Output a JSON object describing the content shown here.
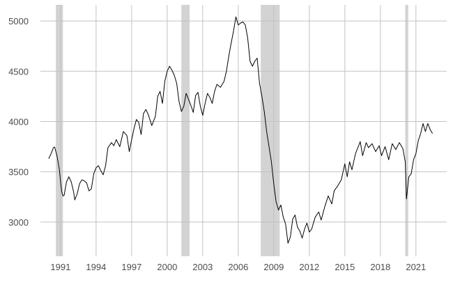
{
  "chart_data": {
    "type": "line",
    "title": "",
    "xlabel": "",
    "ylabel": "",
    "xlim": [
      1989.3,
      2023.6
    ],
    "ylim": [
      2660,
      5160
    ],
    "grid": true,
    "x_ticks": [
      {
        "value": 1991,
        "label": "1991"
      },
      {
        "value": 1994,
        "label": "1994"
      },
      {
        "value": 1997,
        "label": "1997"
      },
      {
        "value": 2000,
        "label": "2000"
      },
      {
        "value": 2003,
        "label": "2003"
      },
      {
        "value": 2006,
        "label": "2006"
      },
      {
        "value": 2009,
        "label": "2009"
      },
      {
        "value": 2012,
        "label": "2012"
      },
      {
        "value": 2015,
        "label": "2015"
      },
      {
        "value": 2018,
        "label": "2018"
      },
      {
        "value": 2021,
        "label": "2021"
      }
    ],
    "y_ticks": [
      {
        "value": 3000,
        "label": "3000"
      },
      {
        "value": 3500,
        "label": "3500"
      },
      {
        "value": 4000,
        "label": "4000"
      },
      {
        "value": 4500,
        "label": "4500"
      },
      {
        "value": 5000,
        "label": "5000"
      }
    ],
    "shaded_periods": [
      {
        "start": 1990.6,
        "end": 1991.2
      },
      {
        "start": 2001.2,
        "end": 2001.9
      },
      {
        "start": 2007.9,
        "end": 2009.5
      },
      {
        "start": 2020.1,
        "end": 2020.35
      }
    ],
    "shade_color": "#d3d3d3",
    "line_color": "#000000",
    "series": [
      {
        "values": [
          [
            1990.0,
            3630
          ],
          [
            1990.2,
            3680
          ],
          [
            1990.4,
            3740
          ],
          [
            1990.5,
            3745
          ],
          [
            1990.7,
            3660
          ],
          [
            1990.9,
            3520
          ],
          [
            1991.0,
            3400
          ],
          [
            1991.1,
            3300
          ],
          [
            1991.2,
            3260
          ],
          [
            1991.3,
            3265
          ],
          [
            1991.5,
            3400
          ],
          [
            1991.7,
            3450
          ],
          [
            1991.9,
            3400
          ],
          [
            1992.1,
            3300
          ],
          [
            1992.2,
            3220
          ],
          [
            1992.4,
            3280
          ],
          [
            1992.6,
            3380
          ],
          [
            1992.8,
            3420
          ],
          [
            1993.0,
            3410
          ],
          [
            1993.2,
            3390
          ],
          [
            1993.4,
            3310
          ],
          [
            1993.6,
            3330
          ],
          [
            1993.8,
            3480
          ],
          [
            1994.0,
            3540
          ],
          [
            1994.2,
            3560
          ],
          [
            1994.4,
            3510
          ],
          [
            1994.6,
            3470
          ],
          [
            1994.8,
            3560
          ],
          [
            1995.0,
            3740
          ],
          [
            1995.3,
            3790
          ],
          [
            1995.5,
            3760
          ],
          [
            1995.7,
            3820
          ],
          [
            1996.0,
            3750
          ],
          [
            1996.3,
            3900
          ],
          [
            1996.6,
            3860
          ],
          [
            1996.8,
            3700
          ],
          [
            1997.0,
            3820
          ],
          [
            1997.2,
            3930
          ],
          [
            1997.4,
            4020
          ],
          [
            1997.6,
            3990
          ],
          [
            1997.8,
            3870
          ],
          [
            1998.0,
            4080
          ],
          [
            1998.2,
            4120
          ],
          [
            1998.4,
            4070
          ],
          [
            1998.7,
            3960
          ],
          [
            1999.0,
            4050
          ],
          [
            1999.2,
            4250
          ],
          [
            1999.4,
            4300
          ],
          [
            1999.6,
            4180
          ],
          [
            1999.8,
            4400
          ],
          [
            2000.0,
            4500
          ],
          [
            2000.2,
            4550
          ],
          [
            2000.4,
            4510
          ],
          [
            2000.6,
            4460
          ],
          [
            2000.8,
            4380
          ],
          [
            2001.0,
            4200
          ],
          [
            2001.2,
            4100
          ],
          [
            2001.4,
            4150
          ],
          [
            2001.6,
            4280
          ],
          [
            2001.8,
            4220
          ],
          [
            2002.0,
            4160
          ],
          [
            2002.2,
            4090
          ],
          [
            2002.4,
            4260
          ],
          [
            2002.6,
            4290
          ],
          [
            2002.8,
            4150
          ],
          [
            2003.0,
            4060
          ],
          [
            2003.2,
            4180
          ],
          [
            2003.4,
            4280
          ],
          [
            2003.6,
            4240
          ],
          [
            2003.8,
            4180
          ],
          [
            2004.0,
            4300
          ],
          [
            2004.2,
            4370
          ],
          [
            2004.5,
            4340
          ],
          [
            2004.8,
            4400
          ],
          [
            2005.0,
            4500
          ],
          [
            2005.2,
            4650
          ],
          [
            2005.4,
            4780
          ],
          [
            2005.6,
            4900
          ],
          [
            2005.8,
            5040
          ],
          [
            2006.0,
            4960
          ],
          [
            2006.2,
            4980
          ],
          [
            2006.4,
            4990
          ],
          [
            2006.6,
            4960
          ],
          [
            2006.8,
            4830
          ],
          [
            2007.0,
            4600
          ],
          [
            2007.2,
            4550
          ],
          [
            2007.4,
            4600
          ],
          [
            2007.6,
            4630
          ],
          [
            2007.8,
            4380
          ],
          [
            2008.0,
            4250
          ],
          [
            2008.2,
            4100
          ],
          [
            2008.4,
            3900
          ],
          [
            2008.6,
            3750
          ],
          [
            2008.8,
            3600
          ],
          [
            2009.0,
            3380
          ],
          [
            2009.2,
            3200
          ],
          [
            2009.4,
            3120
          ],
          [
            2009.6,
            3170
          ],
          [
            2009.8,
            3050
          ],
          [
            2010.0,
            2980
          ],
          [
            2010.2,
            2790
          ],
          [
            2010.4,
            2850
          ],
          [
            2010.6,
            3030
          ],
          [
            2010.8,
            3070
          ],
          [
            2011.0,
            2950
          ],
          [
            2011.2,
            2910
          ],
          [
            2011.4,
            2840
          ],
          [
            2011.6,
            2930
          ],
          [
            2011.8,
            2990
          ],
          [
            2012.0,
            2900
          ],
          [
            2012.2,
            2930
          ],
          [
            2012.5,
            3050
          ],
          [
            2012.8,
            3100
          ],
          [
            2013.0,
            3020
          ],
          [
            2013.3,
            3150
          ],
          [
            2013.6,
            3260
          ],
          [
            2013.9,
            3180
          ],
          [
            2014.1,
            3310
          ],
          [
            2014.4,
            3360
          ],
          [
            2014.7,
            3420
          ],
          [
            2015.0,
            3580
          ],
          [
            2015.2,
            3450
          ],
          [
            2015.4,
            3600
          ],
          [
            2015.6,
            3520
          ],
          [
            2015.9,
            3680
          ],
          [
            2016.1,
            3740
          ],
          [
            2016.3,
            3800
          ],
          [
            2016.5,
            3660
          ],
          [
            2016.8,
            3790
          ],
          [
            2017.0,
            3740
          ],
          [
            2017.3,
            3780
          ],
          [
            2017.6,
            3700
          ],
          [
            2017.9,
            3760
          ],
          [
            2018.1,
            3660
          ],
          [
            2018.4,
            3750
          ],
          [
            2018.7,
            3620
          ],
          [
            2019.0,
            3780
          ],
          [
            2019.3,
            3720
          ],
          [
            2019.6,
            3790
          ],
          [
            2019.9,
            3730
          ],
          [
            2020.1,
            3600
          ],
          [
            2020.2,
            3230
          ],
          [
            2020.4,
            3450
          ],
          [
            2020.6,
            3480
          ],
          [
            2020.8,
            3620
          ],
          [
            2021.0,
            3680
          ],
          [
            2021.2,
            3810
          ],
          [
            2021.4,
            3880
          ],
          [
            2021.6,
            3980
          ],
          [
            2021.8,
            3900
          ],
          [
            2022.0,
            3980
          ],
          [
            2022.2,
            3920
          ],
          [
            2022.4,
            3880
          ]
        ]
      }
    ]
  }
}
